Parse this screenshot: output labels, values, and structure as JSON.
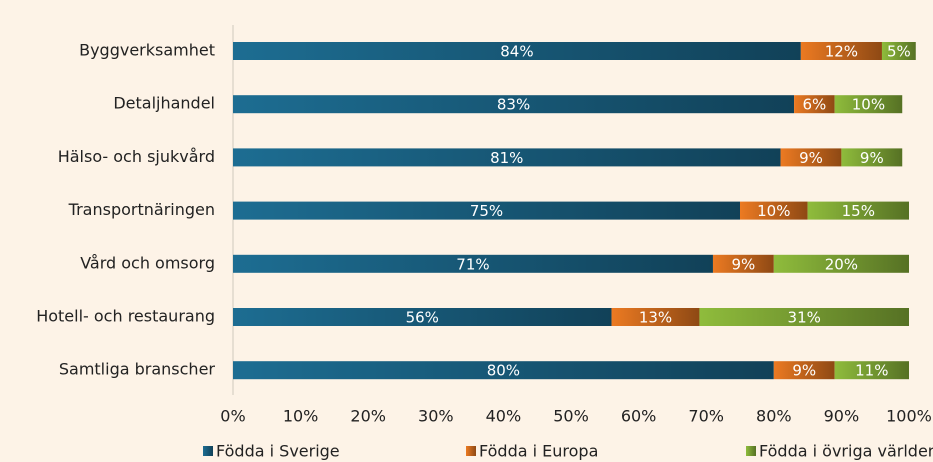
{
  "chart_data": {
    "type": "stacked-barh",
    "categories": [
      "Byggverksamhet",
      "Detaljhandel",
      "Hälso- och sjukvård",
      "Transportnäringen",
      "Vård och omsorg",
      "Hotell- och restaurang",
      "Samtliga branscher"
    ],
    "series": [
      {
        "name": "Födda i Sverige",
        "color": "#1d6d92",
        "values": [
          84,
          83,
          81,
          75,
          71,
          56,
          80
        ],
        "value_labels": [
          "84%",
          "83%",
          "81%",
          "75%",
          "71%",
          "56%",
          "80%"
        ]
      },
      {
        "name": "Födda i Europa",
        "color": "#ec7a22",
        "values": [
          12,
          6,
          9,
          10,
          9,
          13,
          9
        ],
        "value_labels": [
          "12%",
          "6%",
          "9%",
          "10%",
          "9%",
          "13%",
          "9%"
        ]
      },
      {
        "name": "Födda i övriga världen",
        "color": "#8fbc3c",
        "values": [
          5,
          10,
          9,
          15,
          20,
          31,
          11
        ],
        "value_labels": [
          "5%",
          "10%",
          "9%",
          "15%",
          "20%",
          "31%",
          "11%"
        ]
      }
    ],
    "xlim": [
      0,
      100
    ],
    "xticks": [
      {
        "value": 0,
        "label": "0%"
      },
      {
        "value": 10,
        "label": "10%"
      },
      {
        "value": 20,
        "label": "20%"
      },
      {
        "value": 30,
        "label": "30%"
      },
      {
        "value": 40,
        "label": "40%"
      },
      {
        "value": 50,
        "label": "50%"
      },
      {
        "value": 60,
        "label": "60%"
      },
      {
        "value": 70,
        "label": "70%"
      },
      {
        "value": 80,
        "label": "80%"
      },
      {
        "value": 90,
        "label": "90%"
      },
      {
        "value": 100,
        "label": "100%"
      }
    ],
    "legend": "bottom"
  }
}
